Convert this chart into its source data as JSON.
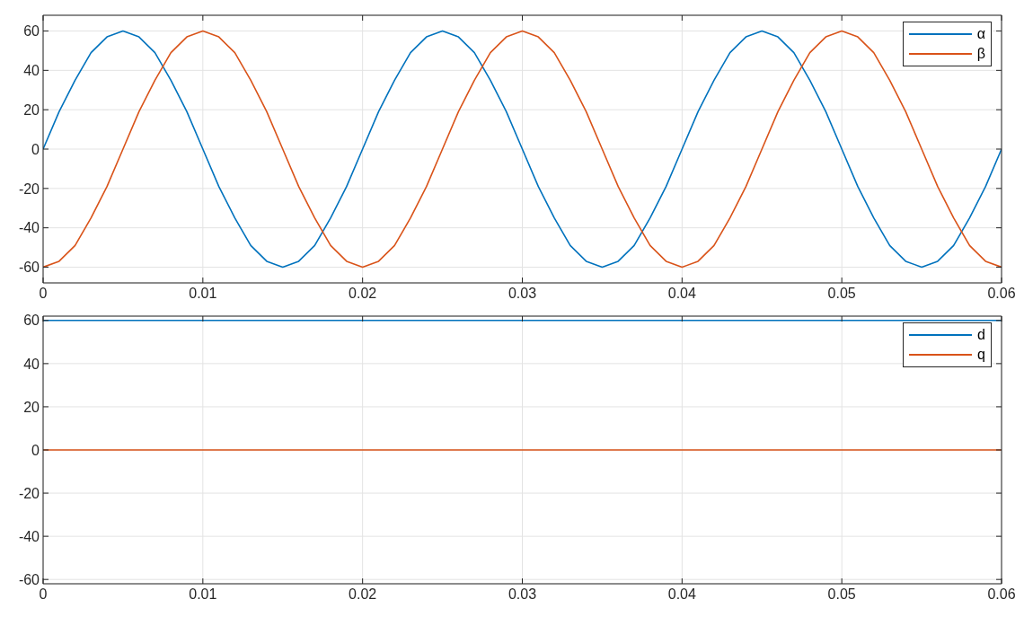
{
  "chart_data": [
    {
      "type": "line",
      "x": [
        0,
        0.001,
        0.002,
        0.003,
        0.004,
        0.005,
        0.006,
        0.007,
        0.008,
        0.009,
        0.01,
        0.011,
        0.012,
        0.013,
        0.014,
        0.015,
        0.016,
        0.017,
        0.018,
        0.019,
        0.02,
        0.021,
        0.022,
        0.023,
        0.024,
        0.025,
        0.026,
        0.027,
        0.028,
        0.029,
        0.03,
        0.031,
        0.032,
        0.033,
        0.034,
        0.035,
        0.036,
        0.037,
        0.038,
        0.039,
        0.04,
        0.041,
        0.042,
        0.043,
        0.044,
        0.045,
        0.046,
        0.047,
        0.048,
        0.049,
        0.05,
        0.051,
        0.052,
        0.053,
        0.054,
        0.055,
        0.056,
        0.057,
        0.058,
        0.059,
        0.06
      ],
      "series": [
        {
          "name": "α",
          "color": "#0072bd",
          "values": [
            0,
            19,
            35,
            49,
            57,
            60,
            57,
            49,
            35,
            19,
            0,
            -19,
            -35,
            -49,
            -57,
            -60,
            -57,
            -49,
            -35,
            -19,
            0,
            19,
            35,
            49,
            57,
            60,
            57,
            49,
            35,
            19,
            0,
            -19,
            -35,
            -49,
            -57,
            -60,
            -57,
            -49,
            -35,
            -19,
            0,
            19,
            35,
            49,
            57,
            60,
            57,
            49,
            35,
            19,
            0,
            -19,
            -35,
            -49,
            -57,
            -60,
            -57,
            -49,
            -35,
            -19,
            0
          ]
        },
        {
          "name": "β",
          "color": "#d95319",
          "values": [
            -60,
            -57,
            -49,
            -35,
            -19,
            0,
            19,
            35,
            49,
            57,
            60,
            57,
            49,
            35,
            19,
            0,
            -19,
            -35,
            -49,
            -57,
            -60,
            -57,
            -49,
            -35,
            -19,
            0,
            19,
            35,
            49,
            57,
            60,
            57,
            49,
            35,
            19,
            0,
            -19,
            -35,
            -49,
            -57,
            -60,
            -57,
            -49,
            -35,
            -19,
            0,
            19,
            35,
            49,
            57,
            60,
            57,
            49,
            35,
            19,
            0,
            -19,
            -35,
            -49,
            -57,
            -60
          ]
        }
      ],
      "xlim": [
        0,
        0.06
      ],
      "xticks": [
        0,
        0.01,
        0.02,
        0.03,
        0.04,
        0.05,
        0.06
      ],
      "ylim": [
        -68,
        68
      ],
      "yticks": [
        -60,
        -40,
        -20,
        0,
        20,
        40,
        60
      ],
      "grid": true,
      "legend": "top right"
    },
    {
      "type": "line",
      "x": [
        0,
        0.06
      ],
      "series": [
        {
          "name": "d",
          "color": "#0072bd",
          "values": [
            60,
            60
          ]
        },
        {
          "name": "q",
          "color": "#d95319",
          "values": [
            0,
            0
          ]
        }
      ],
      "xlim": [
        0,
        0.06
      ],
      "xticks": [
        0,
        0.01,
        0.02,
        0.03,
        0.04,
        0.05,
        0.06
      ],
      "ylim": [
        -62,
        62
      ],
      "yticks": [
        -60,
        -40,
        -20,
        0,
        20,
        40,
        60
      ],
      "grid": true,
      "legend": "top right"
    }
  ]
}
